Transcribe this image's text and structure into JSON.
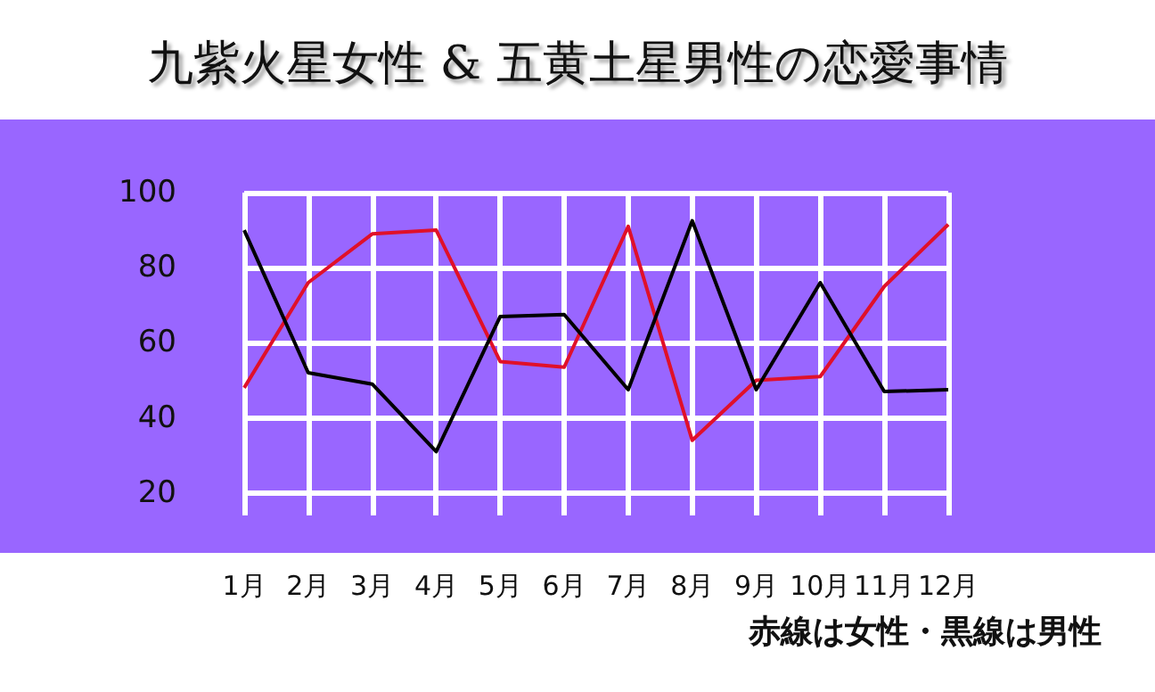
{
  "chart_data": {
    "type": "line",
    "title": "九紫火星女性 & 五黄土星男性の恋愛事情",
    "categories": [
      "1月",
      "2月",
      "3月",
      "4月",
      "5月",
      "6月",
      "7月",
      "8月",
      "9月",
      "10月",
      "11月",
      "12月"
    ],
    "series": [
      {
        "color": "#e0102a",
        "values": [
          48,
          76,
          89,
          90,
          55,
          53.5,
          91,
          34,
          50,
          51,
          75,
          91.5
        ]
      },
      {
        "color": "#000000",
        "values": [
          90,
          52,
          49,
          31,
          67,
          67.5,
          47.5,
          92.5,
          47.5,
          76,
          47,
          47.5
        ]
      }
    ],
    "ylim": [
      14,
      100
    ],
    "yticks": [
      20,
      40,
      60,
      80,
      100
    ],
    "grid": true,
    "marker": "none",
    "line_style": "solid",
    "annotations": [
      "赤線は女性・黒線は男性"
    ]
  }
}
